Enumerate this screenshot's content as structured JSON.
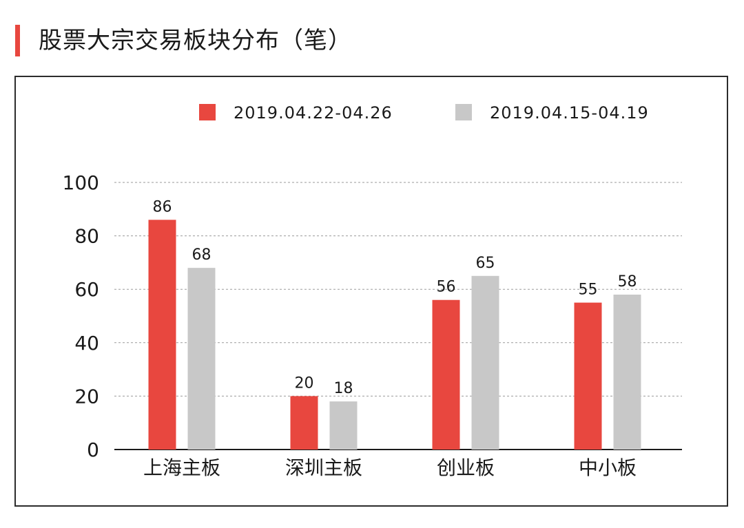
{
  "title": "股票大宗交易板块分布（笔）",
  "chart_data": {
    "type": "bar",
    "categories": [
      "上海主板",
      "深圳主板",
      "创业板",
      "中小板"
    ],
    "series": [
      {
        "name": "2019.04.22-04.26",
        "values": [
          86,
          20,
          56,
          55
        ],
        "color": "#e8473f"
      },
      {
        "name": "2019.04.15-04.19",
        "values": [
          68,
          18,
          65,
          58
        ],
        "color": "#c8c8c8"
      }
    ],
    "ylim": [
      0,
      100
    ],
    "yticks": [
      0,
      20,
      40,
      60,
      80,
      100
    ],
    "grid": true,
    "legend_position": "top"
  }
}
